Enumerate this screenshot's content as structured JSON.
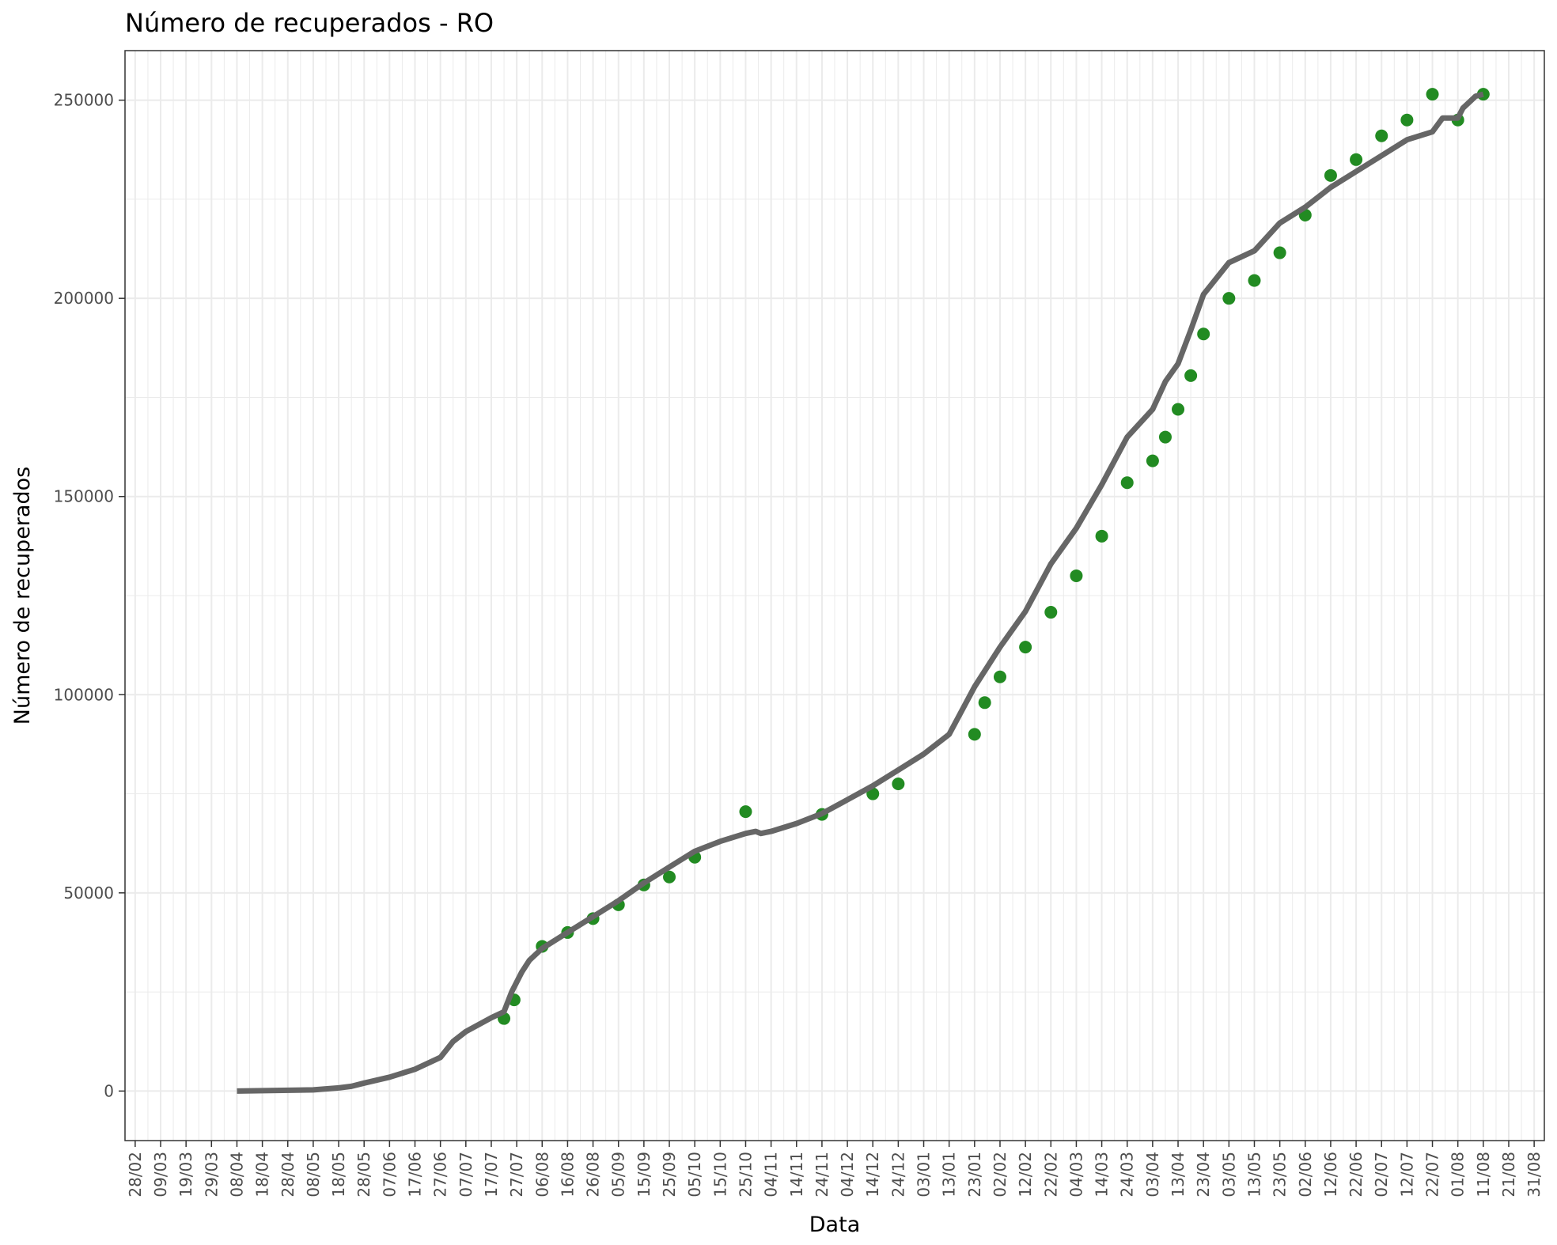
{
  "chart_data": {
    "type": "line",
    "title": "Número de recuperados - RO",
    "xlabel": "Data",
    "ylabel": "Número de recuperados",
    "grid": true,
    "legend": "none",
    "colors": {
      "line": "#666666",
      "points": "#228b22",
      "grid": "#ebebeb",
      "panel_border": "#333333"
    },
    "xlim": [
      "2020-02-24",
      "2021-09-04"
    ],
    "ylim": [
      -12500,
      262500
    ],
    "x_ticks": [
      "28/02",
      "09/03",
      "19/03",
      "29/03",
      "08/04",
      "18/04",
      "28/04",
      "08/05",
      "18/05",
      "28/05",
      "07/06",
      "17/06",
      "27/06",
      "07/07",
      "17/07",
      "27/07",
      "06/08",
      "16/08",
      "26/08",
      "05/09",
      "15/09",
      "25/09",
      "05/10",
      "15/10",
      "25/10",
      "04/11",
      "14/11",
      "24/11",
      "04/12",
      "14/12",
      "24/12",
      "03/01",
      "13/01",
      "23/01",
      "02/02",
      "12/02",
      "22/02",
      "04/03",
      "14/03",
      "24/03",
      "03/04",
      "13/04",
      "23/04",
      "03/05",
      "13/05",
      "23/05",
      "02/06",
      "12/06",
      "22/06",
      "02/07",
      "12/07",
      "22/07",
      "01/08",
      "11/08",
      "21/08",
      "31/08"
    ],
    "x_tick_dates": [
      "2020-02-28",
      "2020-03-09",
      "2020-03-19",
      "2020-03-29",
      "2020-04-08",
      "2020-04-18",
      "2020-04-28",
      "2020-05-08",
      "2020-05-18",
      "2020-05-28",
      "2020-06-07",
      "2020-06-17",
      "2020-06-27",
      "2020-07-07",
      "2020-07-17",
      "2020-07-27",
      "2020-08-06",
      "2020-08-16",
      "2020-08-26",
      "2020-09-05",
      "2020-09-15",
      "2020-09-25",
      "2020-10-05",
      "2020-10-15",
      "2020-10-25",
      "2020-11-04",
      "2020-11-14",
      "2020-11-24",
      "2020-12-04",
      "2020-12-14",
      "2020-12-24",
      "2021-01-03",
      "2021-01-13",
      "2021-01-23",
      "2021-02-02",
      "2021-02-12",
      "2021-02-22",
      "2021-03-04",
      "2021-03-14",
      "2021-03-24",
      "2021-04-03",
      "2021-04-13",
      "2021-04-23",
      "2021-05-03",
      "2021-05-13",
      "2021-05-23",
      "2021-06-02",
      "2021-06-12",
      "2021-06-22",
      "2021-07-02",
      "2021-07-12",
      "2021-07-22",
      "2021-08-01",
      "2021-08-11",
      "2021-08-21",
      "2021-08-31"
    ],
    "y_ticks": [
      0,
      50000,
      100000,
      150000,
      200000,
      250000
    ],
    "y_tick_labels": [
      "0",
      "50000",
      "100000",
      "150000",
      "200000",
      "250000"
    ],
    "series": [
      {
        "type": "line",
        "x": [
          "2020-04-08",
          "2020-05-08",
          "2020-05-18",
          "2020-05-23",
          "2020-05-28",
          "2020-06-07",
          "2020-06-17",
          "2020-06-27",
          "2020-07-02",
          "2020-07-07",
          "2020-07-17",
          "2020-07-22",
          "2020-07-25",
          "2020-07-29",
          "2020-08-01",
          "2020-08-06",
          "2020-08-16",
          "2020-08-26",
          "2020-09-05",
          "2020-09-15",
          "2020-09-25",
          "2020-10-05",
          "2020-10-15",
          "2020-10-25",
          "2020-10-29",
          "2020-10-31",
          "2020-11-04",
          "2020-11-14",
          "2020-11-24",
          "2020-12-04",
          "2020-12-14",
          "2020-12-24",
          "2021-01-03",
          "2021-01-13",
          "2021-01-23",
          "2021-02-02",
          "2021-02-12",
          "2021-02-22",
          "2021-03-04",
          "2021-03-14",
          "2021-03-24",
          "2021-04-03",
          "2021-04-08",
          "2021-04-13",
          "2021-04-18",
          "2021-04-23",
          "2021-05-03",
          "2021-05-13",
          "2021-05-23",
          "2021-06-02",
          "2021-06-12",
          "2021-06-22",
          "2021-07-02",
          "2021-07-12",
          "2021-07-22",
          "2021-07-26",
          "2021-08-01",
          "2021-08-03",
          "2021-08-08",
          "2021-08-11"
        ],
        "y": [
          0,
          300,
          800,
          1200,
          2000,
          3500,
          5500,
          8500,
          12500,
          15000,
          18500,
          20000,
          25000,
          30000,
          33000,
          36000,
          40000,
          44000,
          48000,
          52500,
          56500,
          60500,
          63000,
          65000,
          65500,
          65000,
          65500,
          67500,
          70000,
          73500,
          77000,
          81000,
          85000,
          90000,
          102000,
          112000,
          121000,
          133000,
          142000,
          153000,
          165000,
          172000,
          179000,
          183500,
          192000,
          201000,
          209000,
          212000,
          219000,
          223000,
          228000,
          232000,
          236000,
          240000,
          242000,
          245500,
          245500,
          248000,
          251000,
          251500
        ]
      },
      {
        "type": "scatter",
        "x": [
          "2020-07-22",
          "2020-07-26",
          "2020-08-06",
          "2020-08-16",
          "2020-08-26",
          "2020-09-05",
          "2020-09-15",
          "2020-09-25",
          "2020-10-05",
          "2020-10-25",
          "2020-11-24",
          "2020-12-14",
          "2020-12-24",
          "2021-01-23",
          "2021-01-27",
          "2021-02-02",
          "2021-02-12",
          "2021-02-22",
          "2021-03-04",
          "2021-03-14",
          "2021-03-24",
          "2021-04-03",
          "2021-04-08",
          "2021-04-13",
          "2021-04-18",
          "2021-04-23",
          "2021-05-03",
          "2021-05-13",
          "2021-05-23",
          "2021-06-02",
          "2021-06-12",
          "2021-06-22",
          "2021-07-02",
          "2021-07-12",
          "2021-07-22",
          "2021-08-01",
          "2021-08-11"
        ],
        "y": [
          18300,
          23000,
          36500,
          40000,
          43500,
          47000,
          52000,
          54000,
          59000,
          70500,
          69800,
          75000,
          77500,
          90000,
          98000,
          104500,
          112000,
          120800,
          130000,
          140000,
          153500,
          159000,
          165000,
          172000,
          180500,
          191000,
          200000,
          204500,
          211500,
          221000,
          231000,
          235000,
          241000,
          245000,
          251500,
          245000,
          251500
        ]
      }
    ]
  }
}
